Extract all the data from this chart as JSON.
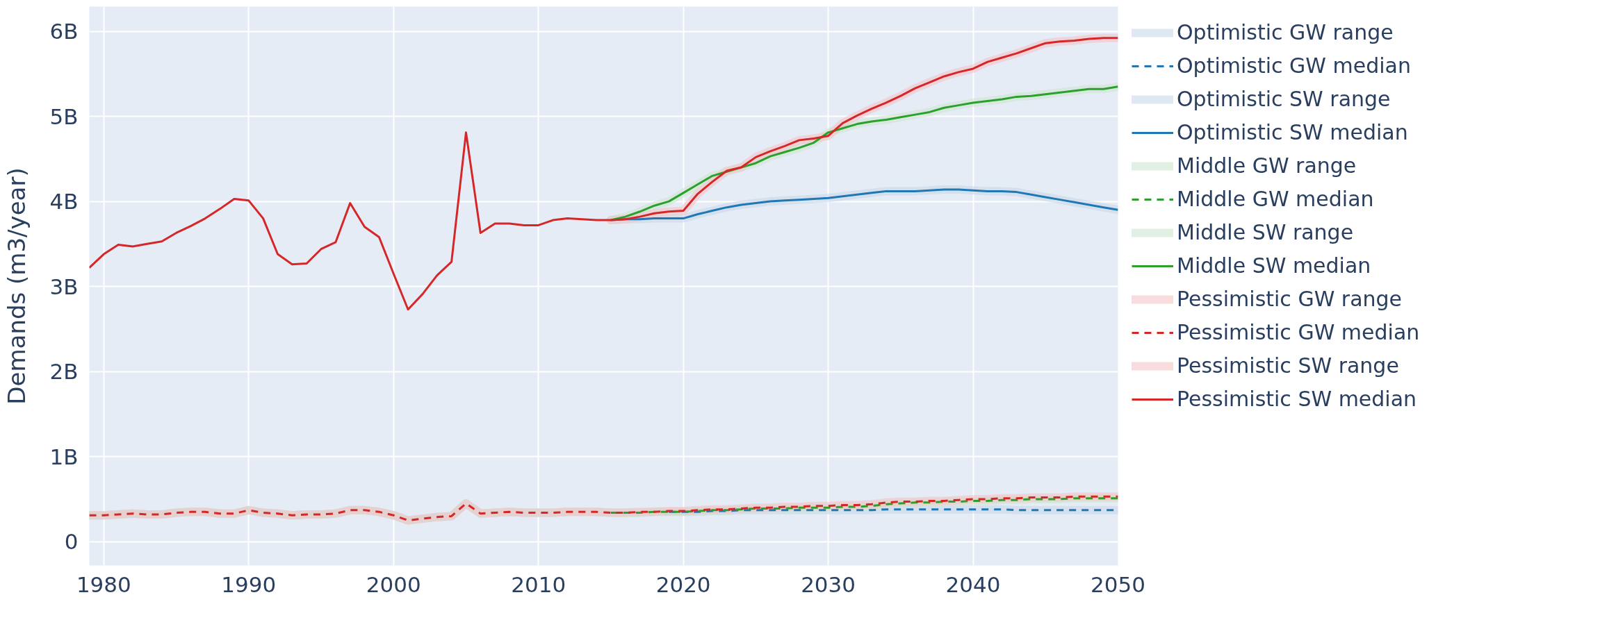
{
  "chart_data": {
    "type": "line",
    "ylabel": "Demands (m3/year)",
    "xlim": [
      1979,
      2050
    ],
    "ylim": [
      -0.28,
      6.29
    ],
    "xticks": [
      1980,
      1990,
      2000,
      2010,
      2020,
      2030,
      2040,
      2050
    ],
    "yticks": [
      {
        "value": 0,
        "label": "0"
      },
      {
        "value": 1,
        "label": "1B"
      },
      {
        "value": 2,
        "label": "2B"
      },
      {
        "value": 3,
        "label": "3B"
      },
      {
        "value": 4,
        "label": "4B"
      },
      {
        "value": 5,
        "label": "5B"
      },
      {
        "value": 6,
        "label": "6B"
      }
    ],
    "grid": true,
    "legend": "right",
    "x": [
      1979,
      1980,
      1981,
      1982,
      1983,
      1984,
      1985,
      1986,
      1987,
      1988,
      1989,
      1990,
      1991,
      1992,
      1993,
      1994,
      1995,
      1996,
      1997,
      1998,
      1999,
      2000,
      2001,
      2002,
      2003,
      2004,
      2005,
      2006,
      2007,
      2008,
      2009,
      2010,
      2011,
      2012,
      2013,
      2014,
      2015,
      2016,
      2017,
      2018,
      2019,
      2020,
      2021,
      2022,
      2023,
      2024,
      2025,
      2026,
      2027,
      2028,
      2029,
      2030,
      2031,
      2032,
      2033,
      2034,
      2035,
      2036,
      2037,
      2038,
      2039,
      2040,
      2041,
      2042,
      2043,
      2044,
      2045,
      2046,
      2047,
      2048,
      2049,
      2050
    ],
    "series": [
      {
        "name": "Optimistic GW range",
        "color": "#c9d8ea",
        "values": [
          0.31,
          0.31,
          0.32,
          0.33,
          0.32,
          0.32,
          0.34,
          0.35,
          0.35,
          0.33,
          0.33,
          0.37,
          0.34,
          0.33,
          0.31,
          0.32,
          0.32,
          0.33,
          0.37,
          0.37,
          0.35,
          0.31,
          0.25,
          0.27,
          0.29,
          0.3,
          0.45,
          0.33,
          0.34,
          0.35,
          0.34,
          0.34,
          0.34,
          0.35,
          0.35,
          0.35,
          0.34,
          0.34,
          0.34,
          0.35,
          0.35,
          0.35,
          0.35,
          0.36,
          0.36,
          0.37,
          0.37,
          0.37,
          0.37,
          0.37,
          0.37,
          0.37,
          0.37,
          0.37,
          0.37,
          0.38,
          0.38,
          0.38,
          0.38,
          0.38,
          0.38,
          0.38,
          0.38,
          0.38,
          0.37,
          0.37,
          0.37,
          0.37,
          0.37,
          0.37,
          0.37,
          0.37
        ]
      },
      {
        "name": "Optimistic GW median",
        "color": "#1f77b4",
        "line_style": "dashed",
        "x": [
          2019,
          2020,
          2021,
          2022,
          2023,
          2024,
          2025,
          2026,
          2027,
          2028,
          2029,
          2030,
          2031,
          2032,
          2033,
          2034,
          2035,
          2036,
          2037,
          2038,
          2039,
          2040,
          2041,
          2042,
          2043,
          2044,
          2045,
          2046,
          2047,
          2048,
          2049,
          2050
        ],
        "values": [
          0.35,
          0.35,
          0.35,
          0.36,
          0.36,
          0.37,
          0.37,
          0.37,
          0.37,
          0.37,
          0.37,
          0.37,
          0.37,
          0.37,
          0.37,
          0.38,
          0.38,
          0.38,
          0.38,
          0.38,
          0.38,
          0.38,
          0.38,
          0.38,
          0.37,
          0.37,
          0.37,
          0.37,
          0.37,
          0.37,
          0.37,
          0.37
        ]
      },
      {
        "name": "Optimistic SW range",
        "color": "#c9d8ea",
        "x": [
          2015,
          2016,
          2017,
          2018,
          2019,
          2020,
          2021,
          2022,
          2023,
          2024,
          2025,
          2026,
          2027,
          2028,
          2029,
          2030,
          2031,
          2032,
          2033,
          2034,
          2035,
          2036,
          2037,
          2038,
          2039,
          2040,
          2041,
          2042,
          2043,
          2044,
          2045,
          2046,
          2047,
          2048,
          2049,
          2050
        ],
        "values": [
          3.78,
          3.79,
          3.79,
          3.8,
          3.8,
          3.8,
          3.85,
          3.89,
          3.93,
          3.96,
          3.98,
          4.0,
          4.01,
          4.02,
          4.03,
          4.04,
          4.06,
          4.08,
          4.1,
          4.12,
          4.12,
          4.12,
          4.13,
          4.14,
          4.14,
          4.13,
          4.12,
          4.12,
          4.11,
          4.08,
          4.05,
          4.02,
          3.99,
          3.96,
          3.93,
          3.9
        ]
      },
      {
        "name": "Optimistic SW median",
        "color": "#1f77b4",
        "line_style": "solid",
        "x": [
          2015,
          2016,
          2017,
          2018,
          2019,
          2020,
          2021,
          2022,
          2023,
          2024,
          2025,
          2026,
          2027,
          2028,
          2029,
          2030,
          2031,
          2032,
          2033,
          2034,
          2035,
          2036,
          2037,
          2038,
          2039,
          2040,
          2041,
          2042,
          2043,
          2044,
          2045,
          2046,
          2047,
          2048,
          2049,
          2050
        ],
        "values": [
          3.78,
          3.79,
          3.79,
          3.8,
          3.8,
          3.8,
          3.85,
          3.89,
          3.93,
          3.96,
          3.98,
          4.0,
          4.01,
          4.02,
          4.03,
          4.04,
          4.06,
          4.08,
          4.1,
          4.12,
          4.12,
          4.12,
          4.13,
          4.14,
          4.14,
          4.13,
          4.12,
          4.12,
          4.11,
          4.08,
          4.05,
          4.02,
          3.99,
          3.96,
          3.93,
          3.9
        ]
      },
      {
        "name": "Middle GW range",
        "color": "#cde6cf",
        "values": [
          0.31,
          0.31,
          0.32,
          0.33,
          0.32,
          0.32,
          0.34,
          0.35,
          0.35,
          0.33,
          0.33,
          0.37,
          0.34,
          0.33,
          0.31,
          0.32,
          0.32,
          0.33,
          0.37,
          0.37,
          0.35,
          0.31,
          0.25,
          0.27,
          0.29,
          0.3,
          0.45,
          0.33,
          0.34,
          0.35,
          0.34,
          0.34,
          0.34,
          0.35,
          0.35,
          0.35,
          0.34,
          0.34,
          0.34,
          0.35,
          0.35,
          0.35,
          0.36,
          0.37,
          0.37,
          0.38,
          0.39,
          0.39,
          0.39,
          0.4,
          0.4,
          0.4,
          0.41,
          0.41,
          0.42,
          0.44,
          0.45,
          0.46,
          0.46,
          0.47,
          0.47,
          0.48,
          0.48,
          0.49,
          0.49,
          0.5,
          0.5,
          0.5,
          0.51,
          0.51,
          0.51,
          0.51
        ]
      },
      {
        "name": "Middle GW median",
        "color": "#2ca02c",
        "line_style": "dashed",
        "x": [
          2015,
          2016,
          2017,
          2018,
          2019,
          2020,
          2021,
          2022,
          2023,
          2024,
          2025,
          2026,
          2027,
          2028,
          2029,
          2030,
          2031,
          2032,
          2033,
          2034,
          2035,
          2036,
          2037,
          2038,
          2039,
          2040,
          2041,
          2042,
          2043,
          2044,
          2045,
          2046,
          2047,
          2048,
          2049,
          2050
        ],
        "values": [
          0.34,
          0.34,
          0.34,
          0.35,
          0.35,
          0.35,
          0.36,
          0.37,
          0.37,
          0.38,
          0.39,
          0.39,
          0.39,
          0.4,
          0.4,
          0.4,
          0.41,
          0.41,
          0.42,
          0.44,
          0.45,
          0.46,
          0.46,
          0.47,
          0.47,
          0.48,
          0.48,
          0.49,
          0.49,
          0.5,
          0.5,
          0.5,
          0.51,
          0.51,
          0.51,
          0.51
        ]
      },
      {
        "name": "Middle SW range",
        "color": "#cde6cf",
        "x": [
          2015,
          2016,
          2017,
          2018,
          2019,
          2020,
          2021,
          2022,
          2023,
          2024,
          2025,
          2026,
          2027,
          2028,
          2029,
          2030,
          2031,
          2032,
          2033,
          2034,
          2035,
          2036,
          2037,
          2038,
          2039,
          2040,
          2041,
          2042,
          2043,
          2044,
          2045,
          2046,
          2047,
          2048,
          2049,
          2050
        ],
        "values": [
          3.78,
          3.82,
          3.88,
          3.95,
          4.0,
          4.1,
          4.2,
          4.3,
          4.35,
          4.4,
          4.45,
          4.53,
          4.58,
          4.63,
          4.69,
          4.81,
          4.86,
          4.91,
          4.94,
          4.96,
          4.99,
          5.02,
          5.05,
          5.1,
          5.13,
          5.16,
          5.18,
          5.2,
          5.23,
          5.24,
          5.26,
          5.28,
          5.3,
          5.32,
          5.32,
          5.35
        ]
      },
      {
        "name": "Middle SW median",
        "color": "#2ca02c",
        "line_style": "solid",
        "x": [
          2015,
          2016,
          2017,
          2018,
          2019,
          2020,
          2021,
          2022,
          2023,
          2024,
          2025,
          2026,
          2027,
          2028,
          2029,
          2030,
          2031,
          2032,
          2033,
          2034,
          2035,
          2036,
          2037,
          2038,
          2039,
          2040,
          2041,
          2042,
          2043,
          2044,
          2045,
          2046,
          2047,
          2048,
          2049,
          2050
        ],
        "values": [
          3.78,
          3.82,
          3.88,
          3.95,
          4.0,
          4.1,
          4.2,
          4.3,
          4.35,
          4.4,
          4.45,
          4.53,
          4.58,
          4.63,
          4.69,
          4.81,
          4.86,
          4.91,
          4.94,
          4.96,
          4.99,
          5.02,
          5.05,
          5.1,
          5.13,
          5.16,
          5.18,
          5.2,
          5.23,
          5.24,
          5.26,
          5.28,
          5.3,
          5.32,
          5.32,
          5.35
        ]
      },
      {
        "name": "Pessimistic GW range",
        "color": "#f3c4c8",
        "values": [
          0.31,
          0.31,
          0.32,
          0.33,
          0.32,
          0.32,
          0.34,
          0.35,
          0.35,
          0.33,
          0.33,
          0.37,
          0.34,
          0.33,
          0.31,
          0.32,
          0.32,
          0.33,
          0.37,
          0.37,
          0.35,
          0.31,
          0.25,
          0.27,
          0.29,
          0.3,
          0.45,
          0.33,
          0.34,
          0.35,
          0.34,
          0.34,
          0.34,
          0.35,
          0.35,
          0.35,
          0.34,
          0.34,
          0.35,
          0.35,
          0.36,
          0.36,
          0.37,
          0.38,
          0.38,
          0.39,
          0.4,
          0.4,
          0.41,
          0.41,
          0.42,
          0.42,
          0.43,
          0.43,
          0.44,
          0.46,
          0.47,
          0.47,
          0.48,
          0.48,
          0.49,
          0.5,
          0.5,
          0.51,
          0.51,
          0.52,
          0.52,
          0.52,
          0.53,
          0.53,
          0.53,
          0.53
        ]
      },
      {
        "name": "Pessimistic GW median",
        "color": "#d62728",
        "line_style": "dashed",
        "values": [
          0.31,
          0.31,
          0.32,
          0.33,
          0.32,
          0.32,
          0.34,
          0.35,
          0.35,
          0.33,
          0.33,
          0.37,
          0.34,
          0.33,
          0.31,
          0.32,
          0.32,
          0.33,
          0.37,
          0.37,
          0.35,
          0.31,
          0.25,
          0.27,
          0.29,
          0.3,
          0.45,
          0.33,
          0.34,
          0.35,
          0.34,
          0.34,
          0.34,
          0.35,
          0.35,
          0.35,
          0.34,
          0.34,
          0.35,
          0.35,
          0.36,
          0.36,
          0.37,
          0.38,
          0.38,
          0.39,
          0.4,
          0.4,
          0.41,
          0.41,
          0.42,
          0.42,
          0.43,
          0.43,
          0.44,
          0.46,
          0.47,
          0.47,
          0.48,
          0.48,
          0.49,
          0.5,
          0.5,
          0.51,
          0.51,
          0.52,
          0.52,
          0.52,
          0.53,
          0.53,
          0.53,
          0.53
        ]
      },
      {
        "name": "Pessimistic SW range",
        "color": "#f3c4c8",
        "x": [
          2015,
          2016,
          2017,
          2018,
          2019,
          2020,
          2021,
          2022,
          2023,
          2024,
          2025,
          2026,
          2027,
          2028,
          2029,
          2030,
          2031,
          2032,
          2033,
          2034,
          2035,
          2036,
          2037,
          2038,
          2039,
          2040,
          2041,
          2042,
          2043,
          2044,
          2045,
          2046,
          2047,
          2048,
          2049,
          2050
        ],
        "values": [
          3.78,
          3.79,
          3.82,
          3.86,
          3.88,
          3.89,
          4.09,
          4.23,
          4.36,
          4.4,
          4.52,
          4.59,
          4.65,
          4.72,
          4.74,
          4.77,
          4.92,
          5.01,
          5.09,
          5.16,
          5.24,
          5.33,
          5.4,
          5.47,
          5.52,
          5.56,
          5.64,
          5.69,
          5.74,
          5.8,
          5.86,
          5.88,
          5.89,
          5.91,
          5.92,
          5.92
        ]
      },
      {
        "name": "Pessimistic SW median",
        "color": "#d62728",
        "line_style": "solid",
        "values": [
          3.22,
          3.38,
          3.49,
          3.47,
          3.5,
          3.53,
          3.63,
          3.71,
          3.8,
          3.91,
          4.03,
          4.01,
          3.8,
          3.38,
          3.26,
          3.27,
          3.44,
          3.52,
          3.98,
          3.7,
          3.58,
          3.15,
          2.73,
          2.91,
          3.13,
          3.29,
          4.81,
          3.63,
          3.74,
          3.74,
          3.72,
          3.72,
          3.78,
          3.8,
          3.79,
          3.78,
          3.78,
          3.79,
          3.82,
          3.86,
          3.88,
          3.89,
          4.09,
          4.23,
          4.36,
          4.4,
          4.52,
          4.59,
          4.65,
          4.72,
          4.74,
          4.77,
          4.92,
          5.01,
          5.09,
          5.16,
          5.24,
          5.33,
          5.4,
          5.47,
          5.52,
          5.56,
          5.64,
          5.69,
          5.74,
          5.8,
          5.86,
          5.88,
          5.89,
          5.91,
          5.92,
          5.92
        ]
      }
    ]
  }
}
